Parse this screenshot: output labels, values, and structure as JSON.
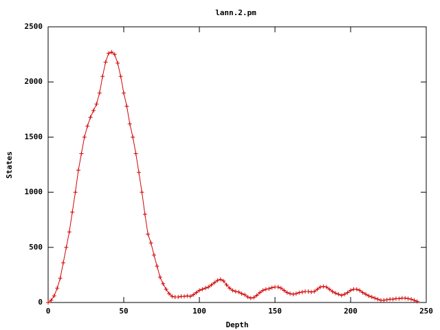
{
  "chart_data": {
    "type": "line",
    "title": "lann.2.pm",
    "x_label": "Depth",
    "y_label": "States",
    "x": [
      0,
      2,
      4,
      6,
      8,
      10,
      12,
      14,
      16,
      18,
      20,
      22,
      24,
      26,
      28,
      30,
      32,
      34,
      36,
      38,
      40,
      42,
      44,
      46,
      48,
      50,
      52,
      54,
      56,
      58,
      60,
      62,
      64,
      66,
      68,
      70,
      72,
      74,
      76,
      78,
      80,
      82,
      84,
      86,
      88,
      90,
      92,
      94,
      96,
      98,
      100,
      102,
      104,
      106,
      108,
      110,
      112,
      114,
      116,
      118,
      120,
      122,
      124,
      126,
      128,
      130,
      132,
      134,
      136,
      138,
      140,
      142,
      144,
      146,
      148,
      150,
      152,
      154,
      156,
      158,
      160,
      162,
      164,
      166,
      168,
      170,
      172,
      174,
      176,
      178,
      180,
      182,
      184,
      186,
      188,
      190,
      192,
      194,
      196,
      198,
      200,
      202,
      204,
      206,
      208,
      210,
      212,
      214,
      216,
      218,
      220,
      222,
      224,
      226,
      228,
      230,
      232,
      234,
      236,
      238,
      240,
      242,
      244
    ],
    "series": [
      {
        "color": "#d00000",
        "values": [
          0,
          20,
          60,
          130,
          220,
          360,
          500,
          640,
          820,
          1000,
          1200,
          1350,
          1500,
          1600,
          1680,
          1740,
          1800,
          1900,
          2050,
          2180,
          2260,
          2270,
          2250,
          2170,
          2050,
          1900,
          1780,
          1620,
          1500,
          1350,
          1180,
          1000,
          800,
          620,
          540,
          430,
          330,
          230,
          170,
          120,
          80,
          55,
          50,
          50,
          55,
          55,
          60,
          55,
          70,
          90,
          110,
          120,
          130,
          140,
          160,
          180,
          200,
          210,
          195,
          160,
          130,
          110,
          100,
          95,
          80,
          70,
          50,
          40,
          45,
          65,
          90,
          110,
          120,
          125,
          135,
          140,
          140,
          130,
          110,
          90,
          80,
          75,
          80,
          90,
          95,
          100,
          100,
          95,
          100,
          120,
          140,
          145,
          140,
          120,
          100,
          85,
          75,
          65,
          75,
          90,
          110,
          120,
          120,
          110,
          90,
          75,
          60,
          50,
          40,
          30,
          20,
          20,
          25,
          30,
          30,
          35,
          35,
          40,
          40,
          35,
          30,
          20,
          10
        ]
      }
    ],
    "xlim": [
      0,
      250
    ],
    "xticks": [
      0,
      50,
      100,
      150,
      200,
      250
    ],
    "ylim": [
      0,
      2500
    ],
    "yticks": [
      0,
      500,
      1000,
      1500,
      2000,
      2500
    ]
  }
}
